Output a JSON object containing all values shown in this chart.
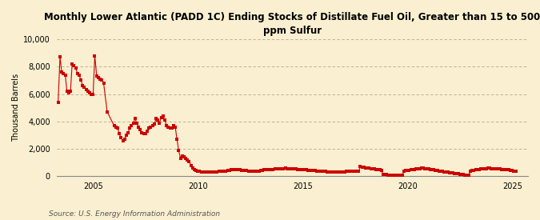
{
  "title": "Monthly Lower Atlantic (PADD 1C) Ending Stocks of Distillate Fuel Oil, Greater than 15 to 500\nppm Sulfur",
  "ylabel": "Thousand Barrels",
  "source": "Source: U.S. Energy Information Administration",
  "bg_color": "#faefd0",
  "plot_bg_color": "#faefd0",
  "marker_color": "#cc0000",
  "ylim": [
    0,
    10000
  ],
  "yticks": [
    0,
    2000,
    4000,
    6000,
    8000,
    10000
  ],
  "xlim_start": 2003.25,
  "xlim_end": 2025.75,
  "xticks": [
    2005,
    2010,
    2015,
    2020,
    2025
  ],
  "data": [
    [
      2003.33,
      5400
    ],
    [
      2003.42,
      8700
    ],
    [
      2003.5,
      7600
    ],
    [
      2003.58,
      7500
    ],
    [
      2003.67,
      7400
    ],
    [
      2003.75,
      6200
    ],
    [
      2003.83,
      6100
    ],
    [
      2003.92,
      6200
    ],
    [
      2004.0,
      8200
    ],
    [
      2004.08,
      8100
    ],
    [
      2004.17,
      7900
    ],
    [
      2004.25,
      7500
    ],
    [
      2004.33,
      7400
    ],
    [
      2004.42,
      7000
    ],
    [
      2004.5,
      6600
    ],
    [
      2004.58,
      6500
    ],
    [
      2004.67,
      6300
    ],
    [
      2004.75,
      6200
    ],
    [
      2004.83,
      6100
    ],
    [
      2004.92,
      6000
    ],
    [
      2005.0,
      6000
    ],
    [
      2005.08,
      8800
    ],
    [
      2005.17,
      7300
    ],
    [
      2005.25,
      7200
    ],
    [
      2005.33,
      7100
    ],
    [
      2005.42,
      7000
    ],
    [
      2005.5,
      6800
    ],
    [
      2005.67,
      4700
    ],
    [
      2006.0,
      3700
    ],
    [
      2006.08,
      3600
    ],
    [
      2006.17,
      3500
    ],
    [
      2006.25,
      3100
    ],
    [
      2006.33,
      2800
    ],
    [
      2006.42,
      2600
    ],
    [
      2006.5,
      2700
    ],
    [
      2006.58,
      3000
    ],
    [
      2006.67,
      3200
    ],
    [
      2006.75,
      3500
    ],
    [
      2006.83,
      3700
    ],
    [
      2006.92,
      3900
    ],
    [
      2007.0,
      4200
    ],
    [
      2007.08,
      3900
    ],
    [
      2007.17,
      3600
    ],
    [
      2007.25,
      3400
    ],
    [
      2007.33,
      3200
    ],
    [
      2007.42,
      3100
    ],
    [
      2007.5,
      3100
    ],
    [
      2007.58,
      3300
    ],
    [
      2007.67,
      3500
    ],
    [
      2007.75,
      3600
    ],
    [
      2007.83,
      3700
    ],
    [
      2007.92,
      3800
    ],
    [
      2008.0,
      4200
    ],
    [
      2008.08,
      4100
    ],
    [
      2008.17,
      3900
    ],
    [
      2008.25,
      4300
    ],
    [
      2008.33,
      4400
    ],
    [
      2008.42,
      4100
    ],
    [
      2008.5,
      3700
    ],
    [
      2008.58,
      3600
    ],
    [
      2008.67,
      3500
    ],
    [
      2008.75,
      3500
    ],
    [
      2008.83,
      3700
    ],
    [
      2008.92,
      3600
    ],
    [
      2009.0,
      2700
    ],
    [
      2009.08,
      1900
    ],
    [
      2009.17,
      1300
    ],
    [
      2009.25,
      1500
    ],
    [
      2009.33,
      1400
    ],
    [
      2009.42,
      1300
    ],
    [
      2009.5,
      1200
    ],
    [
      2009.58,
      1100
    ],
    [
      2009.67,
      800
    ],
    [
      2009.75,
      600
    ],
    [
      2009.83,
      500
    ],
    [
      2009.92,
      450
    ],
    [
      2010.0,
      380
    ],
    [
      2010.08,
      350
    ],
    [
      2010.17,
      320
    ],
    [
      2010.25,
      310
    ],
    [
      2010.33,
      300
    ],
    [
      2010.42,
      290
    ],
    [
      2010.5,
      310
    ],
    [
      2010.58,
      320
    ],
    [
      2010.67,
      330
    ],
    [
      2010.75,
      320
    ],
    [
      2010.83,
      330
    ],
    [
      2010.92,
      340
    ],
    [
      2011.0,
      360
    ],
    [
      2011.08,
      370
    ],
    [
      2011.17,
      380
    ],
    [
      2011.25,
      390
    ],
    [
      2011.33,
      400
    ],
    [
      2011.42,
      420
    ],
    [
      2011.5,
      450
    ],
    [
      2011.58,
      470
    ],
    [
      2011.67,
      490
    ],
    [
      2011.75,
      510
    ],
    [
      2011.83,
      500
    ],
    [
      2011.92,
      490
    ],
    [
      2012.0,
      470
    ],
    [
      2012.08,
      450
    ],
    [
      2012.17,
      430
    ],
    [
      2012.25,
      420
    ],
    [
      2012.33,
      410
    ],
    [
      2012.42,
      400
    ],
    [
      2012.5,
      390
    ],
    [
      2012.58,
      380
    ],
    [
      2012.67,
      370
    ],
    [
      2012.75,
      360
    ],
    [
      2012.83,
      380
    ],
    [
      2012.92,
      400
    ],
    [
      2013.0,
      420
    ],
    [
      2013.08,
      440
    ],
    [
      2013.17,
      460
    ],
    [
      2013.25,
      470
    ],
    [
      2013.33,
      480
    ],
    [
      2013.42,
      490
    ],
    [
      2013.5,
      500
    ],
    [
      2013.58,
      510
    ],
    [
      2013.67,
      520
    ],
    [
      2013.75,
      530
    ],
    [
      2013.83,
      540
    ],
    [
      2013.92,
      550
    ],
    [
      2014.0,
      560
    ],
    [
      2014.08,
      570
    ],
    [
      2014.17,
      580
    ],
    [
      2014.25,
      570
    ],
    [
      2014.33,
      560
    ],
    [
      2014.42,
      550
    ],
    [
      2014.5,
      540
    ],
    [
      2014.58,
      530
    ],
    [
      2014.67,
      520
    ],
    [
      2014.75,
      510
    ],
    [
      2014.83,
      500
    ],
    [
      2014.92,
      490
    ],
    [
      2015.0,
      480
    ],
    [
      2015.08,
      470
    ],
    [
      2015.17,
      460
    ],
    [
      2015.25,
      450
    ],
    [
      2015.33,
      440
    ],
    [
      2015.42,
      430
    ],
    [
      2015.5,
      420
    ],
    [
      2015.58,
      410
    ],
    [
      2015.67,
      400
    ],
    [
      2015.75,
      390
    ],
    [
      2015.83,
      380
    ],
    [
      2015.92,
      370
    ],
    [
      2016.0,
      360
    ],
    [
      2016.08,
      350
    ],
    [
      2016.17,
      340
    ],
    [
      2016.25,
      330
    ],
    [
      2016.33,
      320
    ],
    [
      2016.42,
      310
    ],
    [
      2016.5,
      300
    ],
    [
      2016.58,
      290
    ],
    [
      2016.67,
      300
    ],
    [
      2016.75,
      310
    ],
    [
      2016.83,
      320
    ],
    [
      2016.92,
      330
    ],
    [
      2017.0,
      340
    ],
    [
      2017.08,
      350
    ],
    [
      2017.17,
      360
    ],
    [
      2017.25,
      370
    ],
    [
      2017.33,
      380
    ],
    [
      2017.42,
      390
    ],
    [
      2017.5,
      400
    ],
    [
      2017.58,
      390
    ],
    [
      2017.67,
      380
    ],
    [
      2017.75,
      700
    ],
    [
      2017.83,
      680
    ],
    [
      2017.92,
      650
    ],
    [
      2018.0,
      630
    ],
    [
      2018.08,
      610
    ],
    [
      2018.17,
      590
    ],
    [
      2018.25,
      570
    ],
    [
      2018.33,
      550
    ],
    [
      2018.42,
      530
    ],
    [
      2018.5,
      510
    ],
    [
      2018.58,
      490
    ],
    [
      2018.67,
      470
    ],
    [
      2018.75,
      450
    ],
    [
      2018.83,
      140
    ],
    [
      2018.92,
      120
    ],
    [
      2019.0,
      110
    ],
    [
      2019.08,
      100
    ],
    [
      2019.17,
      95
    ],
    [
      2019.25,
      90
    ],
    [
      2019.33,
      85
    ],
    [
      2019.42,
      80
    ],
    [
      2019.5,
      75
    ],
    [
      2019.58,
      70
    ],
    [
      2019.67,
      65
    ],
    [
      2019.75,
      60
    ],
    [
      2019.83,
      390
    ],
    [
      2019.92,
      410
    ],
    [
      2020.0,
      430
    ],
    [
      2020.08,
      450
    ],
    [
      2020.17,
      470
    ],
    [
      2020.25,
      490
    ],
    [
      2020.33,
      510
    ],
    [
      2020.42,
      530
    ],
    [
      2020.5,
      550
    ],
    [
      2020.58,
      570
    ],
    [
      2020.67,
      590
    ],
    [
      2020.75,
      580
    ],
    [
      2020.83,
      560
    ],
    [
      2020.92,
      540
    ],
    [
      2021.0,
      520
    ],
    [
      2021.08,
      500
    ],
    [
      2021.17,
      480
    ],
    [
      2021.25,
      460
    ],
    [
      2021.33,
      440
    ],
    [
      2021.42,
      420
    ],
    [
      2021.5,
      400
    ],
    [
      2021.58,
      380
    ],
    [
      2021.67,
      360
    ],
    [
      2021.75,
      340
    ],
    [
      2021.83,
      320
    ],
    [
      2021.92,
      300
    ],
    [
      2022.0,
      280
    ],
    [
      2022.08,
      260
    ],
    [
      2022.17,
      240
    ],
    [
      2022.25,
      220
    ],
    [
      2022.33,
      200
    ],
    [
      2022.42,
      180
    ],
    [
      2022.5,
      160
    ],
    [
      2022.58,
      140
    ],
    [
      2022.67,
      120
    ],
    [
      2022.75,
      100
    ],
    [
      2022.83,
      80
    ],
    [
      2022.92,
      60
    ],
    [
      2023.0,
      400
    ],
    [
      2023.08,
      420
    ],
    [
      2023.17,
      440
    ],
    [
      2023.25,
      460
    ],
    [
      2023.33,
      480
    ],
    [
      2023.42,
      500
    ],
    [
      2023.5,
      520
    ],
    [
      2023.58,
      540
    ],
    [
      2023.67,
      560
    ],
    [
      2023.75,
      570
    ],
    [
      2023.83,
      580
    ],
    [
      2023.92,
      580
    ],
    [
      2024.0,
      570
    ],
    [
      2024.08,
      560
    ],
    [
      2024.17,
      550
    ],
    [
      2024.25,
      540
    ],
    [
      2024.33,
      530
    ],
    [
      2024.42,
      520
    ],
    [
      2024.5,
      510
    ],
    [
      2024.58,
      500
    ],
    [
      2024.67,
      490
    ],
    [
      2024.75,
      480
    ],
    [
      2024.83,
      460
    ],
    [
      2024.92,
      440
    ],
    [
      2025.0,
      420
    ],
    [
      2025.08,
      400
    ],
    [
      2025.17,
      380
    ]
  ]
}
